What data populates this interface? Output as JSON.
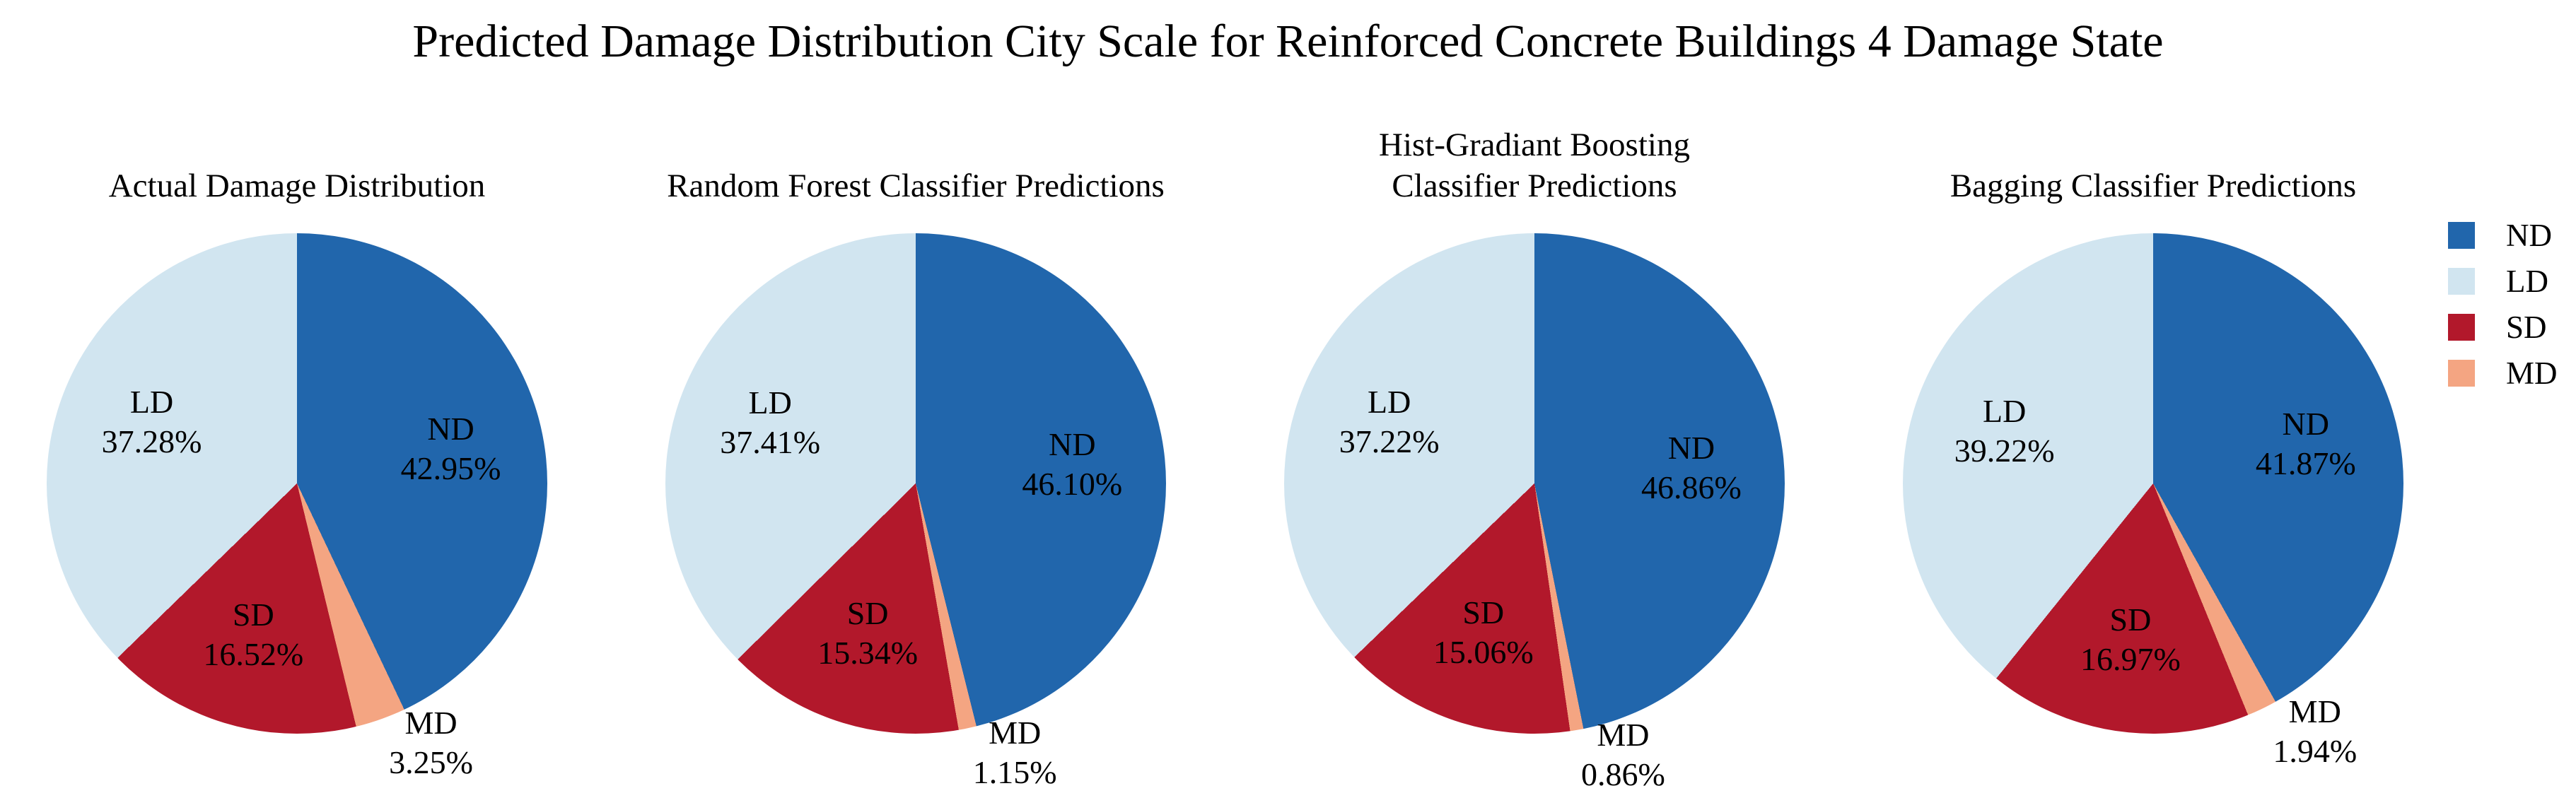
{
  "title": "Predicted Damage Distribution City Scale for Reinforced Concrete Buildings 4 Damage State",
  "colors": {
    "ND": "#2166ac",
    "LD": "#d1e5f0",
    "SD": "#b2182b",
    "MD": "#f4a582"
  },
  "legend": {
    "position": "right",
    "items": [
      {
        "key": "ND",
        "label": "ND"
      },
      {
        "key": "LD",
        "label": "LD"
      },
      {
        "key": "SD",
        "label": "SD"
      },
      {
        "key": "MD",
        "label": "MD"
      }
    ]
  },
  "chart_data": [
    {
      "type": "pie",
      "title": "Actual Damage Distribution",
      "labels": [
        "ND",
        "LD",
        "SD",
        "MD"
      ],
      "values": [
        42.95,
        37.28,
        16.52,
        3.25
      ],
      "unit": "%",
      "start_angle_deg": 90,
      "direction": "clockwise",
      "clockwise_order": [
        "ND",
        "MD",
        "SD",
        "LD"
      ],
      "legend_shown": false
    },
    {
      "type": "pie",
      "title": "Random Forest Classifier Predictions",
      "labels": [
        "ND",
        "LD",
        "SD",
        "MD"
      ],
      "values": [
        46.1,
        37.41,
        15.34,
        1.15
      ],
      "unit": "%",
      "start_angle_deg": 90,
      "direction": "clockwise",
      "clockwise_order": [
        "ND",
        "MD",
        "SD",
        "LD"
      ],
      "legend_shown": false
    },
    {
      "type": "pie",
      "title": "Hist-Gradiant Boosting\nClassifier Predictions",
      "labels": [
        "ND",
        "LD",
        "SD",
        "MD"
      ],
      "values": [
        46.86,
        37.22,
        15.06,
        0.86
      ],
      "unit": "%",
      "start_angle_deg": 90,
      "direction": "clockwise",
      "clockwise_order": [
        "ND",
        "MD",
        "SD",
        "LD"
      ],
      "legend_shown": false
    },
    {
      "type": "pie",
      "title": "Bagging Classifier Predictions",
      "labels": [
        "ND",
        "LD",
        "SD",
        "MD"
      ],
      "values": [
        41.87,
        39.22,
        16.97,
        1.94
      ],
      "unit": "%",
      "start_angle_deg": 90,
      "direction": "clockwise",
      "clockwise_order": [
        "ND",
        "MD",
        "SD",
        "LD"
      ],
      "legend_shown": true
    }
  ]
}
